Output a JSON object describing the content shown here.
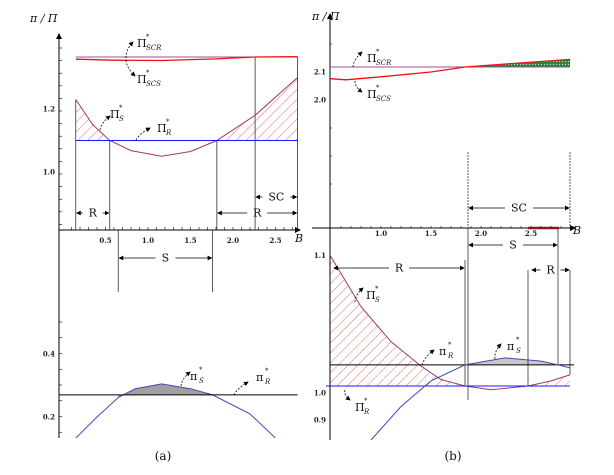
{
  "chart_data": [
    {
      "id": "a",
      "type": "line",
      "caption": "(a)",
      "ylabel": "π / Π",
      "xlabel": "B",
      "x_ticks": [
        "0.5",
        "1.0",
        "1.5",
        "2.0",
        "2.5"
      ],
      "upper": {
        "y_ticks": [
          "1.0",
          "1.2"
        ],
        "series": [
          {
            "name": "Π*SCR",
            "color": "#9b4f9b",
            "points": [
              [
                0.15,
                1.365
              ],
              [
                2.76,
                1.365
              ]
            ]
          },
          {
            "name": "Π*SCS",
            "color": "#ee1111",
            "points": [
              [
                0.15,
                1.358
              ],
              [
                0.6,
                1.355
              ],
              [
                1.16,
                1.354
              ],
              [
                1.8,
                1.359
              ],
              [
                2.26,
                1.365
              ],
              [
                2.76,
                1.366
              ]
            ]
          },
          {
            "name": "Π*S",
            "color": "#9b3a6a",
            "points": [
              [
                0.15,
                1.23
              ],
              [
                0.35,
                1.15
              ],
              [
                0.55,
                1.1
              ],
              [
                0.8,
                1.068
              ],
              [
                1.16,
                1.05
              ],
              [
                1.5,
                1.065
              ],
              [
                1.81,
                1.1
              ],
              [
                2.26,
                1.18
              ],
              [
                2.76,
                1.3
              ]
            ]
          },
          {
            "name": "Π*R",
            "color": "#1a1aff",
            "points": [
              [
                0.15,
                1.1
              ],
              [
                2.76,
                1.1
              ]
            ]
          }
        ],
        "hatched_regions": [
          [
            0.15,
            0.55
          ],
          [
            1.81,
            2.76
          ]
        ]
      },
      "lower": {
        "y_ticks": [
          "0.2",
          "0.4"
        ],
        "series": [
          {
            "name": "π*S",
            "color": "#4848b0",
            "points": [
              [
                0.15,
                0.133
              ],
              [
                0.4,
                0.2
              ],
              [
                0.65,
                0.262
              ],
              [
                0.85,
                0.29
              ],
              [
                1.16,
                0.305
              ],
              [
                1.5,
                0.29
              ],
              [
                1.76,
                0.27
              ],
              [
                2.2,
                0.21
              ],
              [
                2.5,
                0.133
              ]
            ]
          },
          {
            "name": "π*R",
            "color": "#000000",
            "points": [
              [
                -0.05,
                0.27
              ],
              [
                2.76,
                0.27
              ]
            ]
          }
        ],
        "shaded_region": [
          0.65,
          1.76
        ]
      },
      "regions": [
        {
          "label": "R",
          "from": 0.15,
          "to": 0.55,
          "row": "upper"
        },
        {
          "label": "R",
          "from": 1.81,
          "to": 2.76,
          "row": "upper"
        },
        {
          "label": "SC",
          "from": 2.26,
          "to": 2.76,
          "row": "upper2"
        },
        {
          "label": "S",
          "from": 0.65,
          "to": 1.76,
          "row": "below"
        }
      ],
      "annotations": [
        {
          "sym": "Π",
          "sub": "SCR"
        },
        {
          "sym": "Π",
          "sub": "SCS"
        },
        {
          "sym": "Π",
          "sub": "S"
        },
        {
          "sym": "Π",
          "sub": "R"
        },
        {
          "sym": "π",
          "sub": "S"
        },
        {
          "sym": "π",
          "sub": "R"
        }
      ]
    },
    {
      "id": "b",
      "type": "line",
      "caption": "(b)",
      "ylabel": "π / Π",
      "xlabel": "B",
      "x_ticks": [
        "1.0",
        "1.5",
        "2.0",
        "2.5"
      ],
      "upper": {
        "y_ticks": [
          "2.0",
          "2.1"
        ],
        "series": [
          {
            "name": "Π*SCR",
            "color": "#9b4f9b",
            "points": [
              [
                0.49,
                2.118
              ],
              [
                2.89,
                2.118
              ]
            ]
          },
          {
            "name": "Π*SCS",
            "color": "#ee1111",
            "points": [
              [
                0.49,
                2.076
              ],
              [
                0.65,
                2.072
              ],
              [
                1.0,
                2.083
              ],
              [
                1.5,
                2.1
              ],
              [
                1.84,
                2.118
              ],
              [
                2.3,
                2.13
              ],
              [
                2.89,
                2.145
              ]
            ]
          }
        ],
        "green_region": [
          1.84,
          2.89
        ],
        "axis_bar": {
          "from": 2.47,
          "to": 2.78,
          "color": "#8b1a1a"
        }
      },
      "lower": {
        "y_ticks": [
          "0.9",
          "1.0",
          "1.1"
        ],
        "series": [
          {
            "name": "Π*S",
            "color": "#9b3a6a",
            "points": [
              [
                0.49,
                1.51
              ],
              [
                0.8,
                1.32
              ],
              [
                1.1,
                1.19
              ],
              [
                1.4,
                1.1
              ],
              [
                1.6,
                1.05
              ],
              [
                1.84,
                1.026
              ],
              [
                2.1,
                1.012
              ],
              [
                2.47,
                1.026
              ],
              [
                2.7,
                1.045
              ],
              [
                2.89,
                1.067
              ]
            ]
          },
          {
            "name": "Π*R",
            "color": "#1a1aff",
            "points": [
              [
                0.45,
                1.026
              ],
              [
                2.89,
                1.026
              ]
            ]
          },
          {
            "name": "π*R",
            "color": "#000000",
            "points": [
              [
                0.49,
                1.104
              ],
              [
                2.93,
                1.104
              ]
            ]
          },
          {
            "name": "π*S",
            "color": "#4848b0",
            "points": [
              [
                0.9,
                0.826
              ],
              [
                1.2,
                0.95
              ],
              [
                1.5,
                1.045
              ],
              [
                1.84,
                1.104
              ],
              [
                2.24,
                1.13
              ],
              [
                2.6,
                1.118
              ],
              [
                2.77,
                1.104
              ],
              [
                2.89,
                1.093
              ]
            ]
          }
        ],
        "hatched_regions": [
          [
            0.49,
            1.84
          ],
          [
            2.47,
            2.89
          ]
        ],
        "shaded_region": [
          1.84,
          2.77
        ]
      },
      "regions": [
        {
          "label": "SC",
          "from": 1.87,
          "to": 2.89,
          "row": "upper"
        },
        {
          "label": "S",
          "from": 1.87,
          "to": 2.77,
          "row": "below1"
        },
        {
          "label": "R",
          "from": 0.49,
          "to": 1.84,
          "row": "below2"
        },
        {
          "label": "R",
          "from": 2.47,
          "to": 2.89,
          "row": "below2"
        }
      ],
      "annotations": [
        {
          "sym": "Π",
          "sub": "SCR"
        },
        {
          "sym": "Π",
          "sub": "SCS"
        },
        {
          "sym": "Π",
          "sub": "S"
        },
        {
          "sym": "π",
          "sub": "R"
        },
        {
          "sym": "π",
          "sub": "S"
        },
        {
          "sym": "Π",
          "sub": "R"
        }
      ]
    }
  ]
}
